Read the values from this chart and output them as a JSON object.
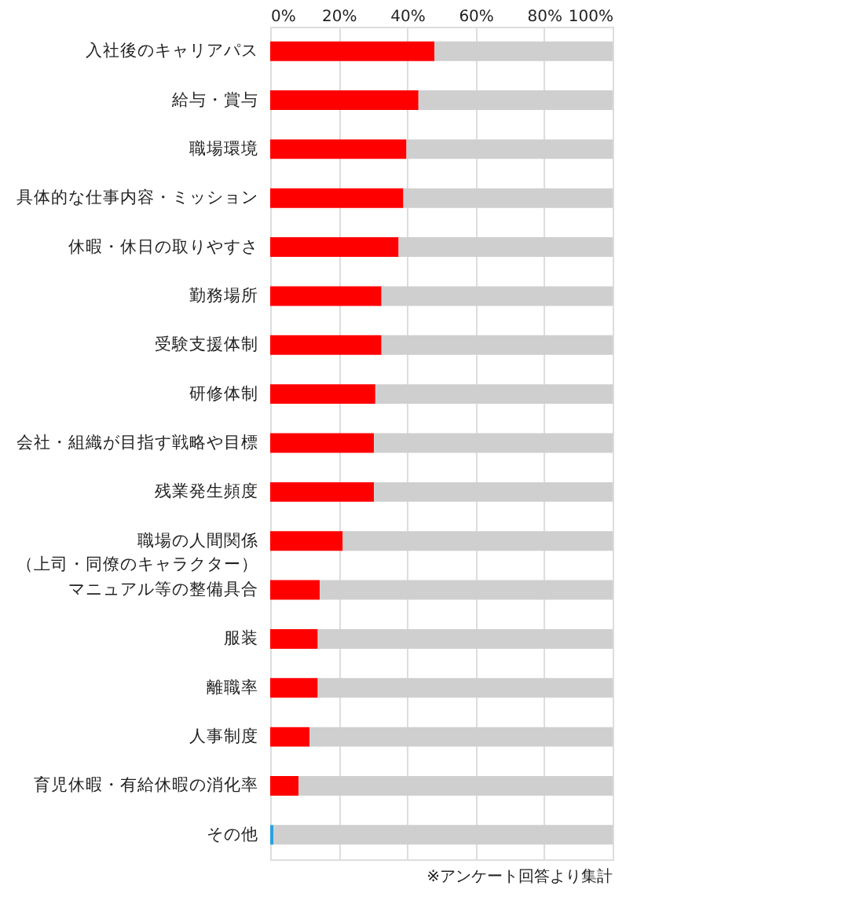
{
  "chart_data": {
    "type": "bar",
    "orientation": "horizontal",
    "stacked": true,
    "categories": [
      "入社後のキャリアパス",
      "給与・賞与",
      "職場環境",
      "具体的な仕事内容・ミッション",
      "休暇・休日の取りやすさ",
      "勤務場所",
      "受験支援体制",
      "研修体制",
      "会社・組織が目指す戦略や目標",
      "残業発生頻度",
      "職場の人間関係（上司・同僚のキャラクター）",
      "マニュアル等の整備具合",
      "服装",
      "離職率",
      "人事制度",
      "育児休暇・有給休暇の消化率",
      "その他"
    ],
    "series": [
      {
        "colors": [
          "#ff0000",
          "#ff0000",
          "#ff0000",
          "#ff0000",
          "#ff0000",
          "#ff0000",
          "#ff0000",
          "#ff0000",
          "#ff0000",
          "#ff0000",
          "#ff0000",
          "#ff0000",
          "#ff0000",
          "#ff0000",
          "#ff0000",
          "#ff0000",
          "#29a0e0"
        ],
        "values": [
          48.0,
          43.3,
          39.8,
          38.9,
          37.5,
          32.5,
          32.5,
          30.7,
          30.3,
          30.3,
          21.2,
          14.5,
          13.9,
          13.9,
          11.5,
          8.3,
          1.0
        ]
      },
      {
        "color": "#d0cfcf",
        "values": [
          52.0,
          56.7,
          60.2,
          61.1,
          62.5,
          67.5,
          67.5,
          69.3,
          69.7,
          69.7,
          78.8,
          85.5,
          86.1,
          86.1,
          88.5,
          91.7,
          99.0
        ]
      }
    ],
    "xlim": [
      0,
      100
    ],
    "xticks": [
      {
        "value": 0,
        "label": "0%"
      },
      {
        "value": 20,
        "label": "20%"
      },
      {
        "value": 40,
        "label": "40%"
      },
      {
        "value": 60,
        "label": "60%"
      },
      {
        "value": 80,
        "label": "80%"
      },
      {
        "value": 100,
        "label": "100%"
      }
    ],
    "grid": "x",
    "legend": false,
    "annotations": [
      "※アンケート回答より集計"
    ]
  }
}
